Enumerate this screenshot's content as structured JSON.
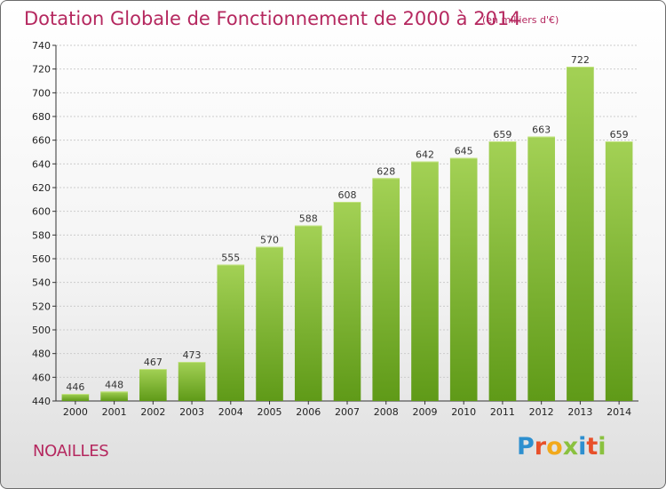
{
  "header": {
    "title": "Dotation Globale de Fonctionnement de 2000 à 2014",
    "unit_note": "(en milliers d'€)"
  },
  "footer": {
    "commune": "NOAILLES",
    "brand_letters": [
      "P",
      "r",
      "o",
      "x",
      "i",
      "t",
      "i"
    ],
    "brand_colors": [
      "#2d8fcf",
      "#e8502a",
      "#f2a91b",
      "#8ac13f",
      "#2d8fcf",
      "#e8502a",
      "#8ac13f"
    ]
  },
  "colors": {
    "bar_top": "#a3d155",
    "bar_bottom": "#5f9a18",
    "title": "#b5285f",
    "grid": "#cccccc"
  },
  "chart_data": {
    "type": "bar",
    "title": "Dotation Globale de Fonctionnement de 2000 à 2014",
    "subtitle": "(en milliers d'€)",
    "categories": [
      "2000",
      "2001",
      "2002",
      "2003",
      "2004",
      "2005",
      "2006",
      "2007",
      "2008",
      "2009",
      "2010",
      "2011",
      "2012",
      "2013",
      "2014"
    ],
    "values": [
      446,
      448,
      467,
      473,
      555,
      570,
      588,
      608,
      628,
      642,
      645,
      659,
      663,
      722,
      659
    ],
    "data_labels": [
      "446",
      "448",
      "467",
      "473",
      "555",
      "570",
      "588",
      "608",
      "628",
      "642",
      "645",
      "659",
      "663",
      "722",
      "659"
    ],
    "ylim": [
      440,
      740
    ],
    "yticks": [
      440,
      460,
      480,
      500,
      520,
      540,
      560,
      580,
      600,
      620,
      640,
      660,
      680,
      700,
      720,
      740
    ],
    "ytick_labels": [
      "440",
      "460",
      "480",
      "500",
      "520",
      "540",
      "560",
      "580",
      "600",
      "620",
      "640",
      "660",
      "680",
      "700",
      "720",
      "740"
    ],
    "xlabel": "",
    "ylabel": "",
    "grid": true
  }
}
